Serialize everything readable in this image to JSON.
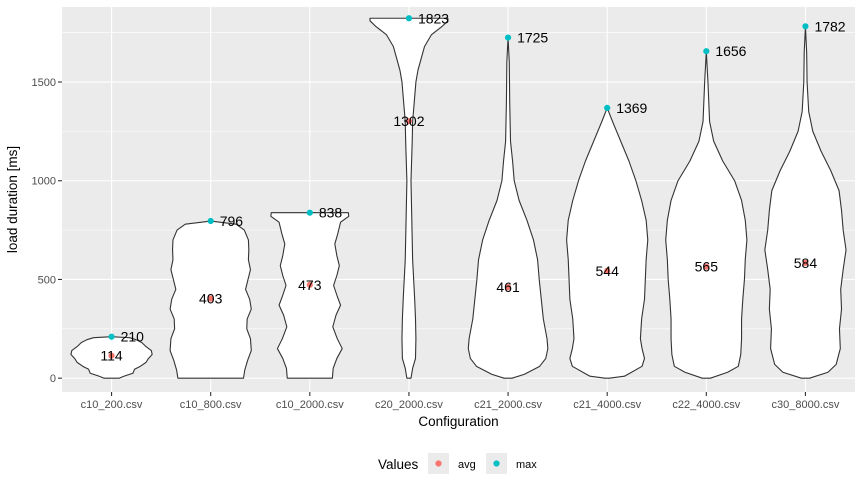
{
  "colors": {
    "panel_background": "#ebebeb",
    "grid_major": "#ffffff",
    "violin_fill": "#ffffff",
    "violin_stroke": "#333333",
    "avg": "#f8766d",
    "max": "#00bfc4"
  },
  "chart_data": {
    "type": "violin",
    "title": "",
    "xlabel": "Configuration",
    "ylabel": "load duration [ms]",
    "ylim": [
      -70,
      1880
    ],
    "y_ticks": [
      0,
      500,
      1000,
      1500
    ],
    "grid": true,
    "legend": {
      "title": "Values",
      "position": "bottom",
      "entries": [
        {
          "key": "avg",
          "label": "avg"
        },
        {
          "key": "max",
          "label": "max"
        }
      ]
    },
    "categories": [
      "c10_200.csv",
      "c10_800.csv",
      "c10_2000.csv",
      "c20_2000.csv",
      "c21_2000.csv",
      "c21_4000.csv",
      "c22_4000.csv",
      "c30_8000.csv"
    ],
    "series": [
      {
        "name": "avg",
        "values": [
          114,
          403,
          473,
          1302,
          461,
          544,
          565,
          584
        ]
      },
      {
        "name": "max",
        "values": [
          210,
          796,
          838,
          1823,
          1725,
          1369,
          1656,
          1782
        ]
      }
    ],
    "violins": [
      {
        "category": "c10_200.csv",
        "min": 0,
        "max": 210,
        "profile": [
          [
            0,
            0.19
          ],
          [
            10,
            0.3
          ],
          [
            25,
            0.52
          ],
          [
            45,
            0.56
          ],
          [
            60,
            0.7
          ],
          [
            80,
            0.84
          ],
          [
            100,
            0.9
          ],
          [
            120,
            0.99
          ],
          [
            140,
            0.97
          ],
          [
            160,
            0.84
          ],
          [
            180,
            0.74
          ],
          [
            195,
            0.6
          ],
          [
            205,
            0.44
          ],
          [
            210,
            0.0
          ]
        ]
      },
      {
        "category": "c10_800.csv",
        "min": 0,
        "max": 796,
        "profile": [
          [
            0,
            0.8
          ],
          [
            40,
            0.83
          ],
          [
            90,
            0.9
          ],
          [
            140,
            0.99
          ],
          [
            200,
            0.97
          ],
          [
            250,
            0.88
          ],
          [
            300,
            0.89
          ],
          [
            350,
            0.99
          ],
          [
            400,
            0.95
          ],
          [
            450,
            0.85
          ],
          [
            500,
            0.91
          ],
          [
            550,
            0.97
          ],
          [
            600,
            0.92
          ],
          [
            650,
            0.93
          ],
          [
            700,
            0.92
          ],
          [
            750,
            0.82
          ],
          [
            780,
            0.62
          ],
          [
            796,
            0.0
          ]
        ]
      },
      {
        "category": "c10_2000.csv",
        "min": 0,
        "max": 838,
        "profile": [
          [
            0,
            0.55
          ],
          [
            50,
            0.57
          ],
          [
            100,
            0.66
          ],
          [
            150,
            0.79
          ],
          [
            200,
            0.67
          ],
          [
            260,
            0.56
          ],
          [
            320,
            0.64
          ],
          [
            370,
            0.75
          ],
          [
            420,
            0.66
          ],
          [
            470,
            0.58
          ],
          [
            520,
            0.66
          ],
          [
            570,
            0.72
          ],
          [
            620,
            0.66
          ],
          [
            680,
            0.61
          ],
          [
            730,
            0.68
          ],
          [
            790,
            0.75
          ],
          [
            820,
            0.95
          ],
          [
            838,
            0.94
          ]
        ]
      },
      {
        "category": "c20_2000.csv",
        "min": 0,
        "max": 1823,
        "profile": [
          [
            0,
            0.05
          ],
          [
            50,
            0.09
          ],
          [
            100,
            0.16
          ],
          [
            200,
            0.17
          ],
          [
            300,
            0.16
          ],
          [
            400,
            0.14
          ],
          [
            600,
            0.09
          ],
          [
            800,
            0.07
          ],
          [
            1000,
            0.05
          ],
          [
            1200,
            0.08
          ],
          [
            1300,
            0.09
          ],
          [
            1400,
            0.13
          ],
          [
            1500,
            0.17
          ],
          [
            1560,
            0.22
          ],
          [
            1620,
            0.3
          ],
          [
            1680,
            0.38
          ],
          [
            1740,
            0.55
          ],
          [
            1780,
            0.8
          ],
          [
            1810,
            0.95
          ],
          [
            1823,
            0.95
          ]
        ]
      },
      {
        "category": "c21_2000.csv",
        "min": 0,
        "max": 1725,
        "profile": [
          [
            0,
            0.1
          ],
          [
            20,
            0.4
          ],
          [
            60,
            0.77
          ],
          [
            100,
            0.92
          ],
          [
            150,
            0.97
          ],
          [
            200,
            0.95
          ],
          [
            300,
            0.86
          ],
          [
            400,
            0.81
          ],
          [
            500,
            0.76
          ],
          [
            600,
            0.72
          ],
          [
            700,
            0.62
          ],
          [
            800,
            0.46
          ],
          [
            900,
            0.27
          ],
          [
            1000,
            0.15
          ],
          [
            1100,
            0.11
          ],
          [
            1200,
            0.06
          ],
          [
            1400,
            0.04
          ],
          [
            1600,
            0.03
          ],
          [
            1725,
            0.0
          ]
        ]
      },
      {
        "category": "c21_4000.csv",
        "min": 0,
        "max": 1369,
        "profile": [
          [
            0,
            0.05
          ],
          [
            10,
            0.42
          ],
          [
            60,
            0.85
          ],
          [
            100,
            0.91
          ],
          [
            150,
            0.85
          ],
          [
            200,
            0.81
          ],
          [
            300,
            0.84
          ],
          [
            400,
            0.91
          ],
          [
            500,
            0.93
          ],
          [
            600,
            0.95
          ],
          [
            700,
            0.99
          ],
          [
            800,
            0.95
          ],
          [
            900,
            0.84
          ],
          [
            1000,
            0.7
          ],
          [
            1100,
            0.53
          ],
          [
            1200,
            0.33
          ],
          [
            1300,
            0.13
          ],
          [
            1369,
            0.0
          ]
        ]
      },
      {
        "category": "c22_4000.csv",
        "min": 0,
        "max": 1656,
        "profile": [
          [
            0,
            0.1
          ],
          [
            30,
            0.52
          ],
          [
            60,
            0.78
          ],
          [
            120,
            0.84
          ],
          [
            200,
            0.86
          ],
          [
            300,
            0.86
          ],
          [
            400,
            0.89
          ],
          [
            500,
            0.93
          ],
          [
            600,
            0.95
          ],
          [
            700,
            0.99
          ],
          [
            800,
            0.95
          ],
          [
            900,
            0.86
          ],
          [
            1000,
            0.69
          ],
          [
            1100,
            0.4
          ],
          [
            1200,
            0.18
          ],
          [
            1300,
            0.08
          ],
          [
            1500,
            0.04
          ],
          [
            1656,
            0.0
          ]
        ]
      },
      {
        "category": "c30_8000.csv",
        "min": 0,
        "max": 1782,
        "profile": [
          [
            0,
            0.1
          ],
          [
            30,
            0.55
          ],
          [
            70,
            0.75
          ],
          [
            150,
            0.85
          ],
          [
            250,
            0.83
          ],
          [
            350,
            0.88
          ],
          [
            450,
            0.86
          ],
          [
            550,
            0.92
          ],
          [
            650,
            0.99
          ],
          [
            750,
            0.92
          ],
          [
            850,
            0.88
          ],
          [
            950,
            0.82
          ],
          [
            1050,
            0.62
          ],
          [
            1150,
            0.38
          ],
          [
            1250,
            0.18
          ],
          [
            1350,
            0.08
          ],
          [
            1500,
            0.04
          ],
          [
            1650,
            0.03
          ],
          [
            1782,
            0.0
          ]
        ]
      }
    ]
  }
}
